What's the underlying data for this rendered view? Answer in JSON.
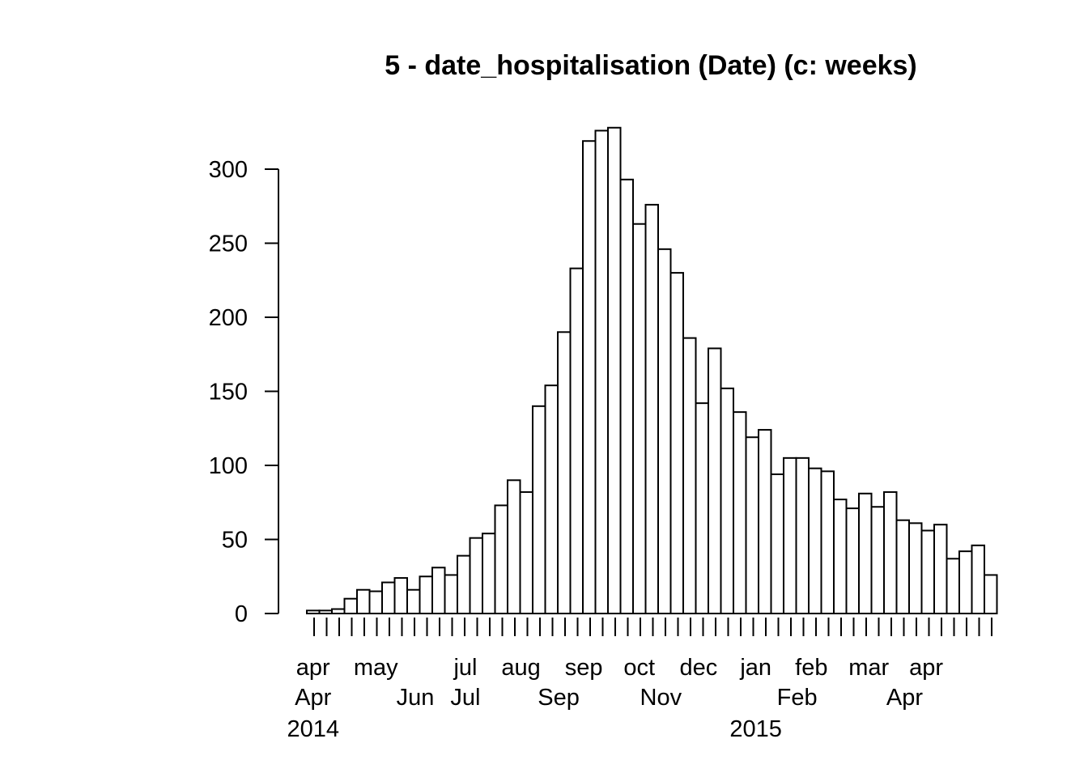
{
  "chart_data": {
    "type": "bar",
    "title": "5 - date_hospitalisation (Date) (c: weeks)",
    "xlabel": "",
    "ylabel": "",
    "ylim": [
      0,
      330
    ],
    "y_ticks": [
      0,
      50,
      100,
      150,
      200,
      250,
      300
    ],
    "grid": false,
    "legend": "none",
    "x_start": "2014-04-07",
    "bin_days": 7,
    "values": [
      2,
      2,
      3,
      10,
      16,
      15,
      21,
      24,
      16,
      25,
      31,
      26,
      39,
      51,
      54,
      73,
      90,
      82,
      140,
      154,
      190,
      233,
      319,
      326,
      328,
      293,
      263,
      276,
      246,
      230,
      186,
      142,
      179,
      152,
      136,
      119,
      124,
      94,
      105,
      105,
      98,
      96,
      77,
      71,
      81,
      72,
      82,
      63,
      61,
      56,
      60,
      37,
      42,
      46,
      26
    ],
    "x_labels_row1": [
      {
        "label": "apr",
        "date": "2014-04-07"
      },
      {
        "label": "may",
        "date": "2014-05-12"
      },
      {
        "label": "jul",
        "date": "2014-07-01"
      },
      {
        "label": "aug",
        "date": "2014-08-01"
      },
      {
        "label": "sep",
        "date": "2014-09-05"
      },
      {
        "label": "oct",
        "date": "2014-10-06"
      },
      {
        "label": "dec",
        "date": "2014-11-08"
      },
      {
        "label": "jan",
        "date": "2014-12-10"
      },
      {
        "label": "feb",
        "date": "2015-01-10"
      },
      {
        "label": "mar",
        "date": "2015-02-11"
      },
      {
        "label": "apr",
        "date": "2015-03-15"
      }
    ],
    "x_labels_row2": [
      {
        "label": "Apr",
        "date": "2014-04-07"
      },
      {
        "label": "Jun",
        "date": "2014-06-03"
      },
      {
        "label": "Jul",
        "date": "2014-07-01"
      },
      {
        "label": "Sep",
        "date": "2014-08-22"
      },
      {
        "label": "Nov",
        "date": "2014-10-18"
      },
      {
        "label": "Feb",
        "date": "2015-01-02"
      },
      {
        "label": "Apr",
        "date": "2015-03-03"
      }
    ],
    "x_labels_row3": [
      {
        "label": "2014",
        "date": "2014-04-07"
      },
      {
        "label": "2015",
        "date": "2014-12-10"
      }
    ]
  }
}
